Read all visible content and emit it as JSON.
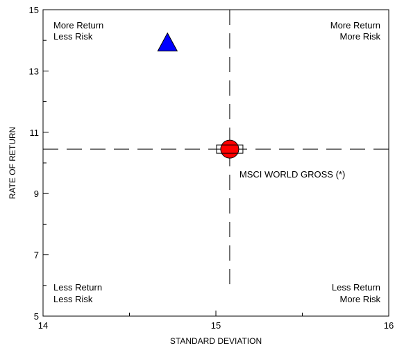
{
  "chart_data": {
    "type": "scatter",
    "title": "",
    "xlabel": "STANDARD DEVIATION",
    "ylabel": "RATE OF RETURN",
    "xlim": [
      14,
      16
    ],
    "ylim": [
      5,
      15
    ],
    "x_ticks": [
      14,
      15,
      16
    ],
    "x_minor_ticks": [
      14.5,
      15.5
    ],
    "y_ticks": [
      5,
      7,
      9,
      11,
      13,
      15
    ],
    "y_minor_ticks": [
      6,
      8,
      10,
      12,
      14
    ],
    "grid": false,
    "reference_lines": {
      "x": 15.08,
      "y": 10.45,
      "style": "dashed"
    },
    "quadrant_labels": {
      "top_left": [
        "More Return",
        "Less Risk"
      ],
      "top_right": [
        "More Return",
        "More Risk"
      ],
      "bottom_left": [
        "Less Return",
        "Less Risk"
      ],
      "bottom_right": [
        "Less Return",
        "More Risk"
      ]
    },
    "points": [
      {
        "marker": "triangle",
        "color": "#0000ff",
        "x": 14.72,
        "y": 13.9,
        "label": ""
      },
      {
        "marker": "circle",
        "color": "#ff0000",
        "x": 15.08,
        "y": 10.45,
        "label": "MSCI WORLD GROSS (*)"
      },
      {
        "marker": "rectangle",
        "color": "#ffffff",
        "x": 15.08,
        "y": 10.45,
        "label": ""
      }
    ]
  }
}
